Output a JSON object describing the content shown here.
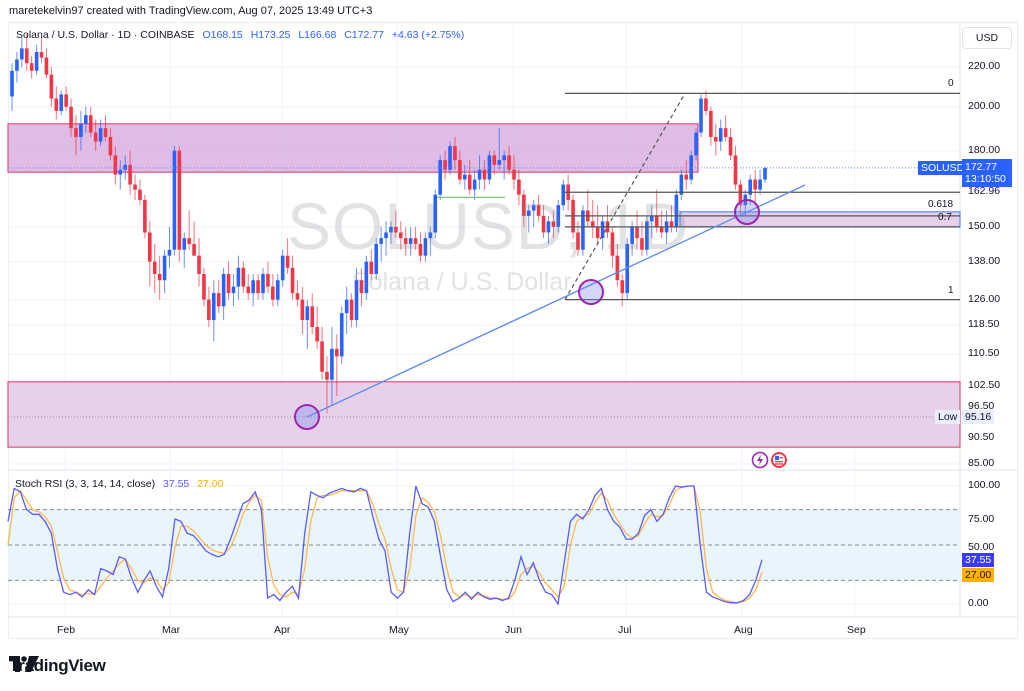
{
  "header": {
    "credit": "maretekelvin97 created with TradingView.com, Aug 07, 2025 13:49 UTC+3"
  },
  "symbol": {
    "name": "Solana / U.S. Dollar · 1D · COINBASE",
    "open": "O168.15",
    "high": "H173.25",
    "low": "L166.68",
    "close": "C172.77",
    "change": "+4.63 (+2.75%)",
    "ticker": "SOLUSD",
    "last_price": "172.77",
    "countdown": "13:10:50",
    "watermark_ticker": "SOLUSD, 1D",
    "watermark_name": "Solana / U.S. Dollar"
  },
  "currency_button": "USD",
  "price_axis": {
    "ticks": [
      "220.00",
      "200.00",
      "180.00",
      "162.96",
      "150.00",
      "138.00",
      "126.00",
      "118.50",
      "110.50",
      "102.50",
      "96.50",
      "90.50",
      "85.00"
    ],
    "low_label": "Low",
    "low_value": "95.16"
  },
  "time_axis": {
    "ticks": [
      "Feb",
      "Mar",
      "Apr",
      "May",
      "Jun",
      "Jul",
      "Aug",
      "Sep"
    ]
  },
  "fib_levels": [
    {
      "label": "0",
      "price": 206.5
    },
    {
      "label": "0.618",
      "price": 154.0
    },
    {
      "label": "0.7",
      "price": 150.0
    },
    {
      "label": "1",
      "price": 126.0
    }
  ],
  "stoch_rsi": {
    "title": "Stoch RSI (3, 3, 14, 14, close)",
    "k_value": "37.55",
    "d_value": "27.00",
    "ticks": [
      "100.00",
      "75.00",
      "50.00",
      "0.00"
    ]
  },
  "brand": {
    "name": "TradingView"
  },
  "colors": {
    "up": "#2962ff",
    "down": "#f23645",
    "zone_fill": "#d8b0e0",
    "zone_border": "#e0507a",
    "trendline": "#5b8af0",
    "k_line": "#5b5bff",
    "d_line": "#ffb74d",
    "stoch_band": "#e3f2fd"
  },
  "chart_data": {
    "type": "candlestick",
    "title": "Solana / U.S. Dollar · 1D · COINBASE",
    "xlabel": "",
    "ylabel": "USD",
    "yscale": "log",
    "ylim": [
      85,
      225
    ],
    "x_ticks": [
      "Feb",
      "Mar",
      "Apr",
      "May",
      "Jun",
      "Jul",
      "Aug",
      "Sep"
    ],
    "last": {
      "open": 168.15,
      "high": 173.25,
      "low": 166.68,
      "close": 172.77
    },
    "zones": [
      {
        "name": "resistance-zone",
        "from": 171,
        "to": 192,
        "x_start": "Jan 15",
        "x_end": "Jul 22"
      },
      {
        "name": "support-zone",
        "from": 88.5,
        "to": 103.5,
        "x_start": "Jan 15",
        "x_end": "Sep 30"
      },
      {
        "name": "fib-golden-zone",
        "from": 150,
        "to": 155.5,
        "x_start": "Jul 14",
        "x_end": "Sep 30"
      }
    ],
    "annotations": [
      "Low 95.16",
      "fib 0 / 0.618 / 0.7 / 1",
      "ascending trendline from Apr low",
      "circles at Apr 7, Jun 22, Aug 2 lows"
    ],
    "series": [
      {
        "name": "SOLUSD",
        "candles": [
          [
            205,
            222,
            198,
            218
          ],
          [
            218,
            228,
            212,
            224
          ],
          [
            224,
            236,
            220,
            230
          ],
          [
            230,
            238,
            218,
            222
          ],
          [
            222,
            226,
            214,
            218
          ],
          [
            218,
            232,
            216,
            228
          ],
          [
            228,
            236,
            222,
            225
          ],
          [
            225,
            230,
            214,
            216
          ],
          [
            216,
            220,
            200,
            204
          ],
          [
            204,
            210,
            194,
            198
          ],
          [
            198,
            208,
            196,
            206
          ],
          [
            206,
            210,
            198,
            200
          ],
          [
            200,
            204,
            186,
            190
          ],
          [
            190,
            196,
            178,
            186
          ],
          [
            186,
            198,
            180,
            192
          ],
          [
            192,
            200,
            188,
            196
          ],
          [
            196,
            200,
            186,
            188
          ],
          [
            188,
            194,
            180,
            184
          ],
          [
            184,
            194,
            182,
            190
          ],
          [
            190,
            196,
            184,
            186
          ],
          [
            186,
            190,
            176,
            178
          ],
          [
            178,
            182,
            166,
            170
          ],
          [
            170,
            176,
            164,
            172
          ],
          [
            172,
            178,
            168,
            174
          ],
          [
            174,
            180,
            162,
            166
          ],
          [
            166,
            170,
            160,
            164
          ],
          [
            164,
            168,
            158,
            160
          ],
          [
            160,
            162,
            146,
            148
          ],
          [
            148,
            152,
            130,
            138
          ],
          [
            138,
            144,
            128,
            134
          ],
          [
            134,
            140,
            126,
            132
          ],
          [
            132,
            142,
            128,
            140
          ],
          [
            140,
            150,
            136,
            142
          ],
          [
            142,
            182,
            140,
            180
          ],
          [
            180,
            182,
            138,
            142
          ],
          [
            142,
            148,
            136,
            146
          ],
          [
            146,
            156,
            142,
            144
          ],
          [
            144,
            152,
            140,
            140
          ],
          [
            140,
            146,
            130,
            134
          ],
          [
            134,
            136,
            124,
            126
          ],
          [
            126,
            130,
            118,
            120
          ],
          [
            120,
            132,
            114,
            128
          ],
          [
            128,
            132,
            122,
            124
          ],
          [
            124,
            136,
            120,
            134
          ],
          [
            134,
            138,
            126,
            128
          ],
          [
            128,
            134,
            124,
            130
          ],
          [
            130,
            140,
            126,
            136
          ],
          [
            136,
            138,
            128,
            130
          ],
          [
            130,
            134,
            126,
            128
          ],
          [
            128,
            134,
            124,
            132
          ],
          [
            132,
            134,
            126,
            128
          ],
          [
            128,
            136,
            126,
            134
          ],
          [
            134,
            138,
            128,
            130
          ],
          [
            130,
            134,
            124,
            126
          ],
          [
            126,
            134,
            124,
            132
          ],
          [
            132,
            142,
            130,
            140
          ],
          [
            140,
            146,
            134,
            136
          ],
          [
            136,
            140,
            126,
            128
          ],
          [
            128,
            132,
            124,
            126
          ],
          [
            126,
            130,
            116,
            120
          ],
          [
            120,
            126,
            112,
            124
          ],
          [
            124,
            128,
            116,
            118
          ],
          [
            118,
            124,
            112,
            114
          ],
          [
            114,
            118,
            104,
            106
          ],
          [
            106,
            110,
            96,
            104
          ],
          [
            104,
            118,
            98,
            112
          ],
          [
            112,
            116,
            100,
            110
          ],
          [
            110,
            124,
            108,
            122
          ],
          [
            122,
            130,
            116,
            126
          ],
          [
            126,
            128,
            118,
            120
          ],
          [
            120,
            136,
            118,
            132
          ],
          [
            132,
            136,
            124,
            128
          ],
          [
            128,
            140,
            126,
            138
          ],
          [
            138,
            142,
            132,
            134
          ],
          [
            134,
            146,
            132,
            144
          ],
          [
            144,
            150,
            138,
            146
          ],
          [
            146,
            152,
            140,
            148
          ],
          [
            148,
            152,
            144,
            150
          ],
          [
            150,
            156,
            146,
            148
          ],
          [
            148,
            152,
            142,
            146
          ],
          [
            146,
            150,
            140,
            144
          ],
          [
            144,
            150,
            140,
            146
          ],
          [
            146,
            150,
            142,
            144
          ],
          [
            144,
            148,
            138,
            140
          ],
          [
            140,
            148,
            138,
            146
          ],
          [
            146,
            150,
            140,
            148
          ],
          [
            148,
            164,
            146,
            162
          ],
          [
            162,
            178,
            160,
            176
          ],
          [
            176,
            180,
            168,
            172
          ],
          [
            172,
            184,
            170,
            182
          ],
          [
            182,
            186,
            172,
            176
          ],
          [
            176,
            180,
            166,
            168
          ],
          [
            168,
            174,
            164,
            170
          ],
          [
            170,
            176,
            162,
            164
          ],
          [
            164,
            172,
            160,
            168
          ],
          [
            168,
            178,
            164,
            172
          ],
          [
            172,
            176,
            164,
            168
          ],
          [
            168,
            180,
            166,
            178
          ],
          [
            178,
            180,
            170,
            174
          ],
          [
            174,
            190,
            172,
            176
          ],
          [
            176,
            180,
            168,
            178
          ],
          [
            178,
            182,
            170,
            172
          ],
          [
            172,
            178,
            164,
            168
          ],
          [
            168,
            172,
            158,
            162
          ],
          [
            162,
            164,
            150,
            154
          ],
          [
            154,
            158,
            148,
            156
          ],
          [
            156,
            160,
            150,
            158
          ],
          [
            158,
            162,
            152,
            154
          ],
          [
            154,
            158,
            146,
            148
          ],
          [
            148,
            154,
            144,
            152
          ],
          [
            152,
            156,
            146,
            150
          ],
          [
            150,
            160,
            148,
            158
          ],
          [
            158,
            168,
            156,
            166
          ],
          [
            166,
            170,
            156,
            160
          ],
          [
            160,
            162,
            146,
            148
          ],
          [
            148,
            152,
            140,
            142
          ],
          [
            142,
            158,
            140,
            156
          ],
          [
            156,
            164,
            150,
            152
          ],
          [
            152,
            160,
            146,
            150
          ],
          [
            150,
            158,
            144,
            146
          ],
          [
            146,
            154,
            142,
            152
          ],
          [
            152,
            158,
            146,
            148
          ],
          [
            148,
            150,
            136,
            140
          ],
          [
            140,
            144,
            130,
            132
          ],
          [
            132,
            134,
            124,
            128
          ],
          [
            128,
            146,
            126,
            144
          ],
          [
            144,
            152,
            140,
            150
          ],
          [
            150,
            156,
            142,
            146
          ],
          [
            146,
            152,
            140,
            142
          ],
          [
            142,
            154,
            140,
            152
          ],
          [
            152,
            158,
            146,
            154
          ],
          [
            154,
            164,
            148,
            150
          ],
          [
            150,
            156,
            146,
            148
          ],
          [
            148,
            156,
            144,
            152
          ],
          [
            152,
            158,
            148,
            150
          ],
          [
            150,
            164,
            148,
            162
          ],
          [
            162,
            172,
            160,
            170
          ],
          [
            170,
            176,
            164,
            168
          ],
          [
            168,
            180,
            166,
            178
          ],
          [
            178,
            190,
            176,
            188
          ],
          [
            188,
            206,
            186,
            204
          ],
          [
            204,
            208,
            196,
            198
          ],
          [
            198,
            200,
            182,
            186
          ],
          [
            186,
            192,
            178,
            184
          ],
          [
            184,
            194,
            180,
            190
          ],
          [
            190,
            196,
            184,
            186
          ],
          [
            186,
            190,
            176,
            178
          ],
          [
            178,
            182,
            164,
            166
          ],
          [
            166,
            168,
            154,
            158
          ],
          [
            158,
            164,
            154,
            162
          ],
          [
            162,
            170,
            158,
            168
          ],
          [
            168,
            172,
            158,
            164
          ],
          [
            164,
            172,
            162,
            168
          ],
          [
            168,
            173.25,
            166.68,
            172.77
          ]
        ]
      }
    ],
    "stoch_rsi": {
      "k": [
        70,
        98,
        95,
        80,
        76,
        76,
        70,
        60,
        30,
        10,
        8,
        10,
        6,
        12,
        8,
        30,
        28,
        25,
        40,
        38,
        22,
        10,
        20,
        28,
        15,
        6,
        30,
        72,
        70,
        60,
        58,
        52,
        45,
        42,
        40,
        42,
        55,
        70,
        85,
        88,
        95,
        80,
        5,
        8,
        3,
        10,
        15,
        5,
        60,
        95,
        92,
        90,
        94,
        96,
        98,
        96,
        95,
        98,
        96,
        75,
        55,
        45,
        10,
        5,
        10,
        60,
        100,
        85,
        82,
        70,
        40,
        12,
        2,
        5,
        10,
        4,
        10,
        6,
        4,
        5,
        3,
        5,
        20,
        40,
        25,
        35,
        20,
        10,
        8,
        0,
        35,
        70,
        76,
        72,
        80,
        92,
        98,
        80,
        70,
        65,
        55,
        55,
        60,
        75,
        80,
        70,
        76,
        90,
        100,
        99,
        100,
        100,
        50,
        10,
        6,
        4,
        2,
        1,
        1,
        3,
        8,
        20,
        37.55
      ],
      "d": [
        50,
        90,
        96,
        88,
        80,
        78,
        74,
        66,
        45,
        22,
        12,
        10,
        8,
        9,
        8,
        15,
        22,
        28,
        34,
        38,
        30,
        20,
        18,
        22,
        20,
        12,
        18,
        48,
        66,
        66,
        62,
        56,
        50,
        46,
        44,
        43,
        48,
        60,
        76,
        86,
        92,
        88,
        40,
        16,
        8,
        6,
        10,
        8,
        30,
        70,
        90,
        92,
        92,
        94,
        96,
        96,
        96,
        96,
        96,
        85,
        68,
        55,
        30,
        12,
        10,
        30,
        75,
        90,
        86,
        78,
        58,
        30,
        10,
        6,
        8,
        6,
        8,
        7,
        5,
        5,
        4,
        4,
        10,
        25,
        30,
        32,
        26,
        18,
        12,
        6,
        15,
        50,
        70,
        74,
        76,
        86,
        94,
        88,
        76,
        68,
        60,
        56,
        58,
        68,
        76,
        74,
        75,
        84,
        96,
        99,
        100,
        100,
        78,
        30,
        10,
        6,
        3,
        2,
        1,
        2,
        5,
        12,
        27.0
      ]
    }
  }
}
